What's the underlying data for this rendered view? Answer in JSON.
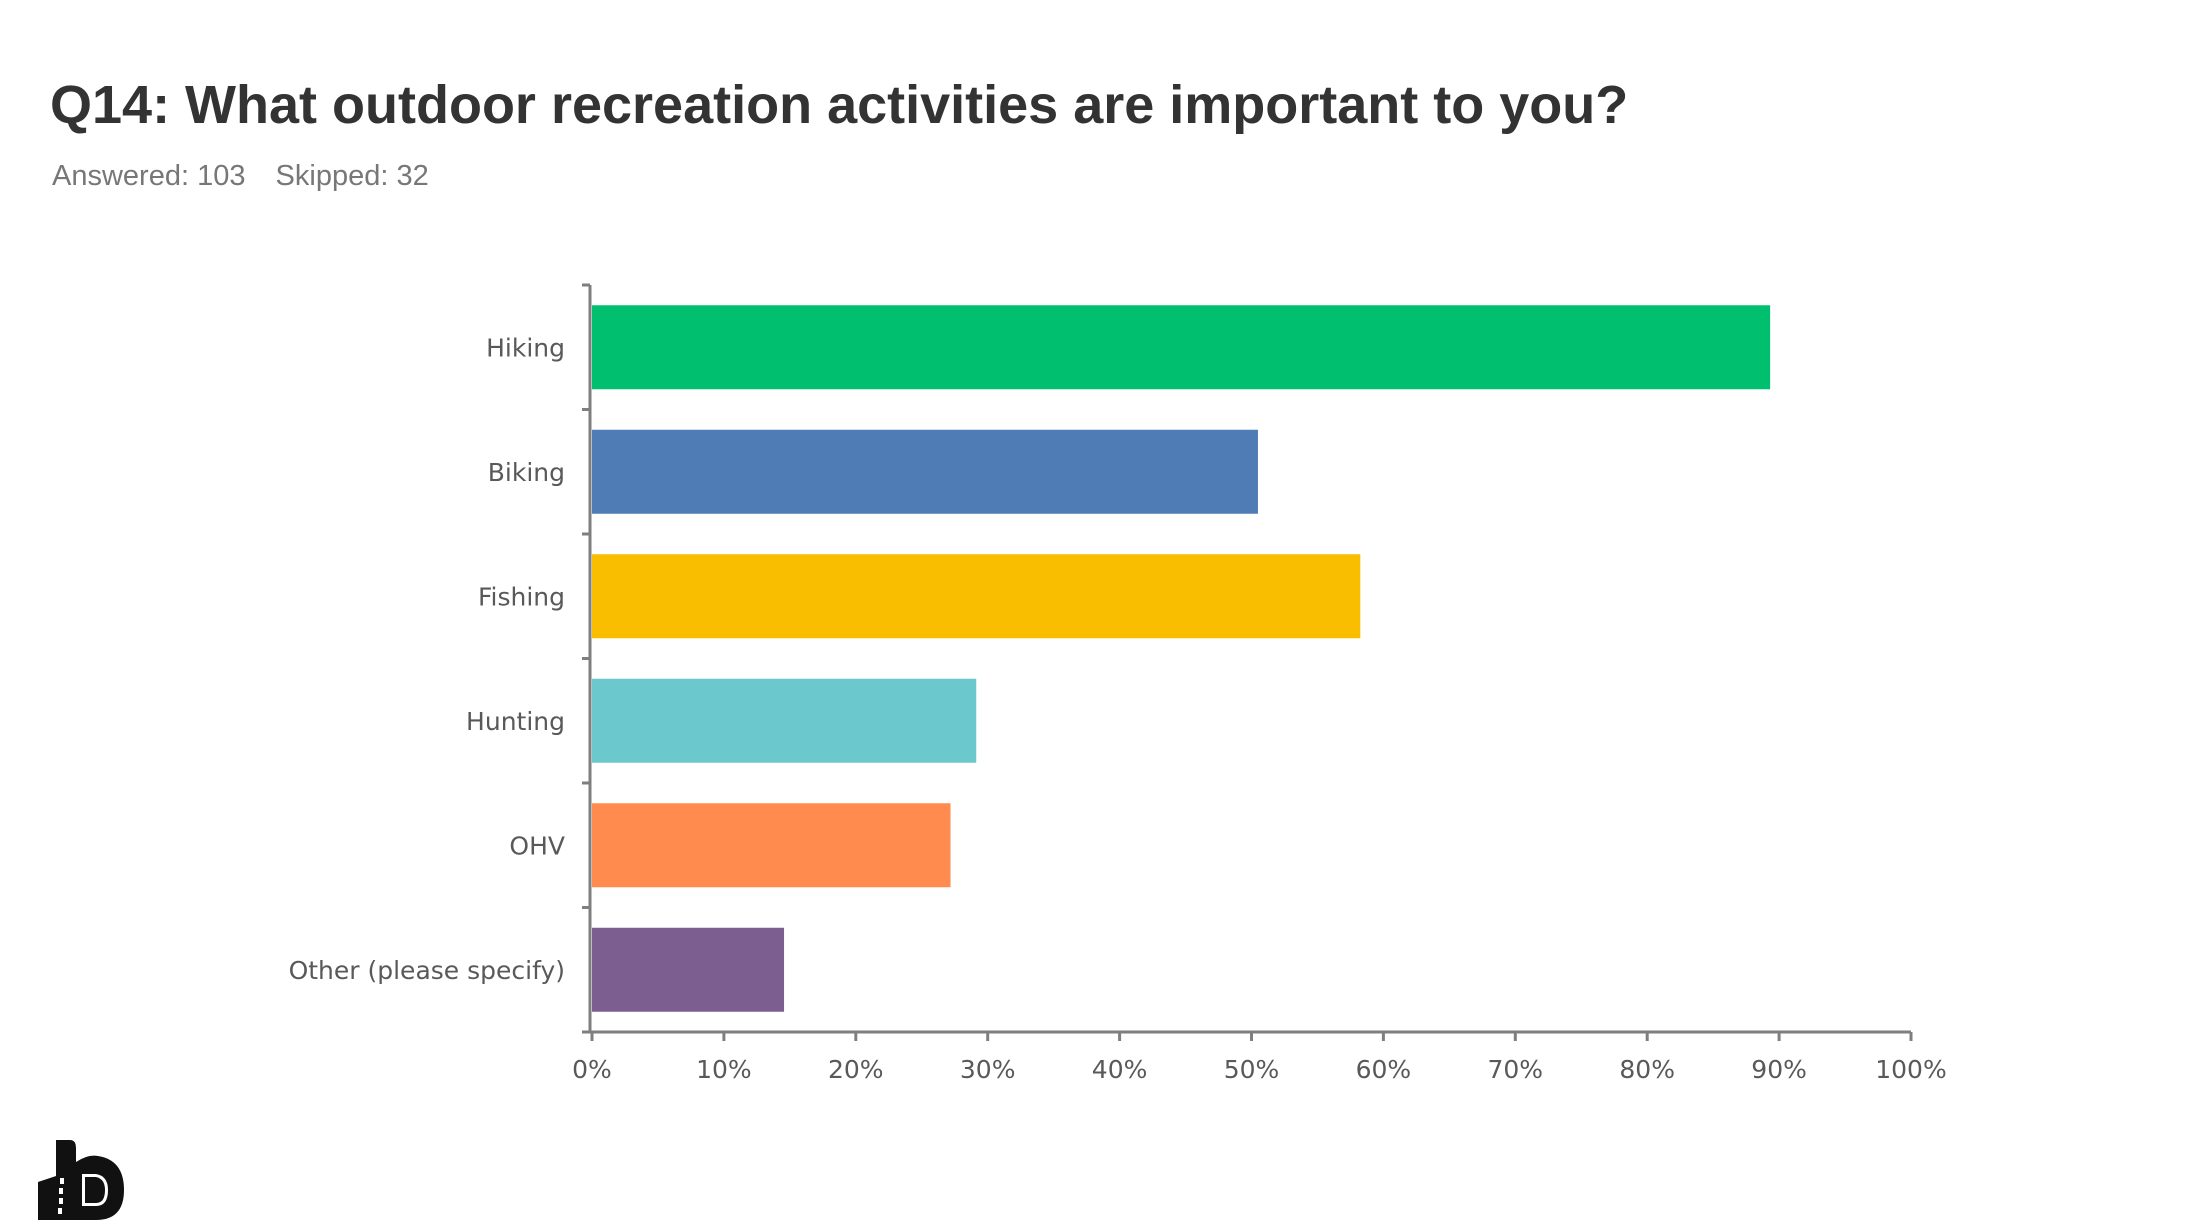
{
  "chart_data": {
    "type": "bar",
    "orientation": "horizontal",
    "title": "Q14: What outdoor recreation activities are important to you?",
    "answered_label": "Answered: 103",
    "skipped_label": "Skipped: 32",
    "categories": [
      "Hiking",
      "Biking",
      "Fishing",
      "Hunting",
      "OHV",
      "Other (please specify)"
    ],
    "values": [
      89.32,
      50.49,
      58.25,
      29.13,
      27.18,
      14.56
    ],
    "colors": [
      "#00BF6F",
      "#507CB6",
      "#F9BE00",
      "#6BC8CD",
      "#FF8B4F",
      "#7D5E90"
    ],
    "xlim": [
      0,
      100
    ],
    "xticks": [
      "0%",
      "10%",
      "20%",
      "30%",
      "40%",
      "50%",
      "60%",
      "70%",
      "80%",
      "90%",
      "100%"
    ],
    "xlabel": "",
    "ylabel": "",
    "grid": false
  }
}
